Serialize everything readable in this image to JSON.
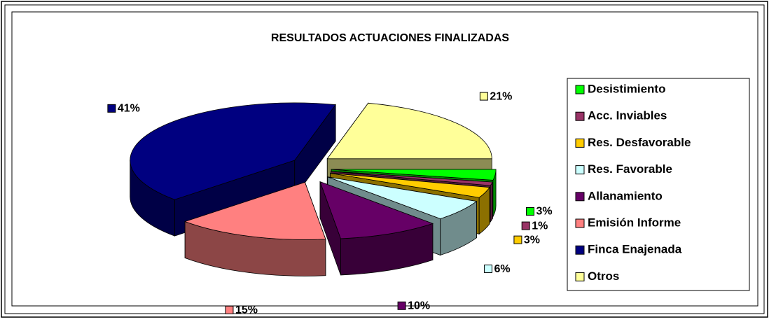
{
  "chart_data": {
    "type": "pie3d",
    "title": "RESULTADOS ACTUACIONES FINALIZADAS",
    "categories": [
      "Desistimiento",
      "Acc. Inviables",
      "Res. Desfavorable",
      "Res. Favorable",
      "Allanamiento",
      "Emisión Informe",
      "Finca Enajenada",
      "Otros"
    ],
    "values": [
      3,
      1,
      3,
      6,
      10,
      15,
      41,
      21
    ],
    "value_labels": [
      "3%",
      "1%",
      "3%",
      "6%",
      "10%",
      "15%",
      "41%",
      "21%"
    ],
    "colors": [
      "#00ff00",
      "#993366",
      "#ffcc00",
      "#ccffff",
      "#660066",
      "#ff8080",
      "#000080",
      "#ffff99"
    ],
    "legend": "right"
  }
}
